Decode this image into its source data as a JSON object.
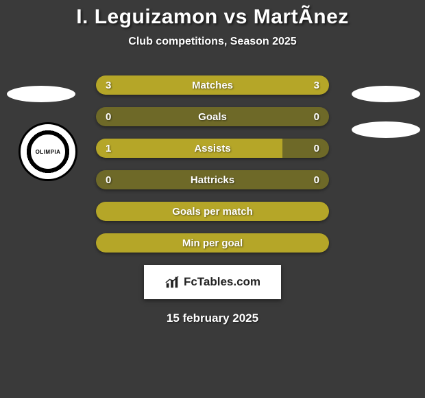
{
  "title": "I. Leguizamon vs MartÃnez",
  "subtitle": "Club competitions, Season 2025",
  "club_badge_text": "OLIMPIA",
  "colors": {
    "background": "#3a3a3a",
    "bar_dark": "#6e6928",
    "bar_light": "#b5a628",
    "text": "#ffffff"
  },
  "stats": [
    {
      "label": "Matches",
      "left_val": "3",
      "right_val": "3",
      "left_pct": 50,
      "right_pct": 50
    },
    {
      "label": "Goals",
      "left_val": "0",
      "right_val": "0",
      "left_pct": 0,
      "right_pct": 0
    },
    {
      "label": "Assists",
      "left_val": "1",
      "right_val": "0",
      "left_pct": 80,
      "right_pct": 0
    },
    {
      "label": "Hattricks",
      "left_val": "0",
      "right_val": "0",
      "left_pct": 0,
      "right_pct": 0
    },
    {
      "label": "Goals per match",
      "left_val": "",
      "right_val": "",
      "left_pct": 100,
      "right_pct": 0,
      "full": true
    },
    {
      "label": "Min per goal",
      "left_val": "",
      "right_val": "",
      "left_pct": 100,
      "right_pct": 0,
      "full": true
    }
  ],
  "footer_brand": "FcTables.com",
  "date": "15 february 2025"
}
